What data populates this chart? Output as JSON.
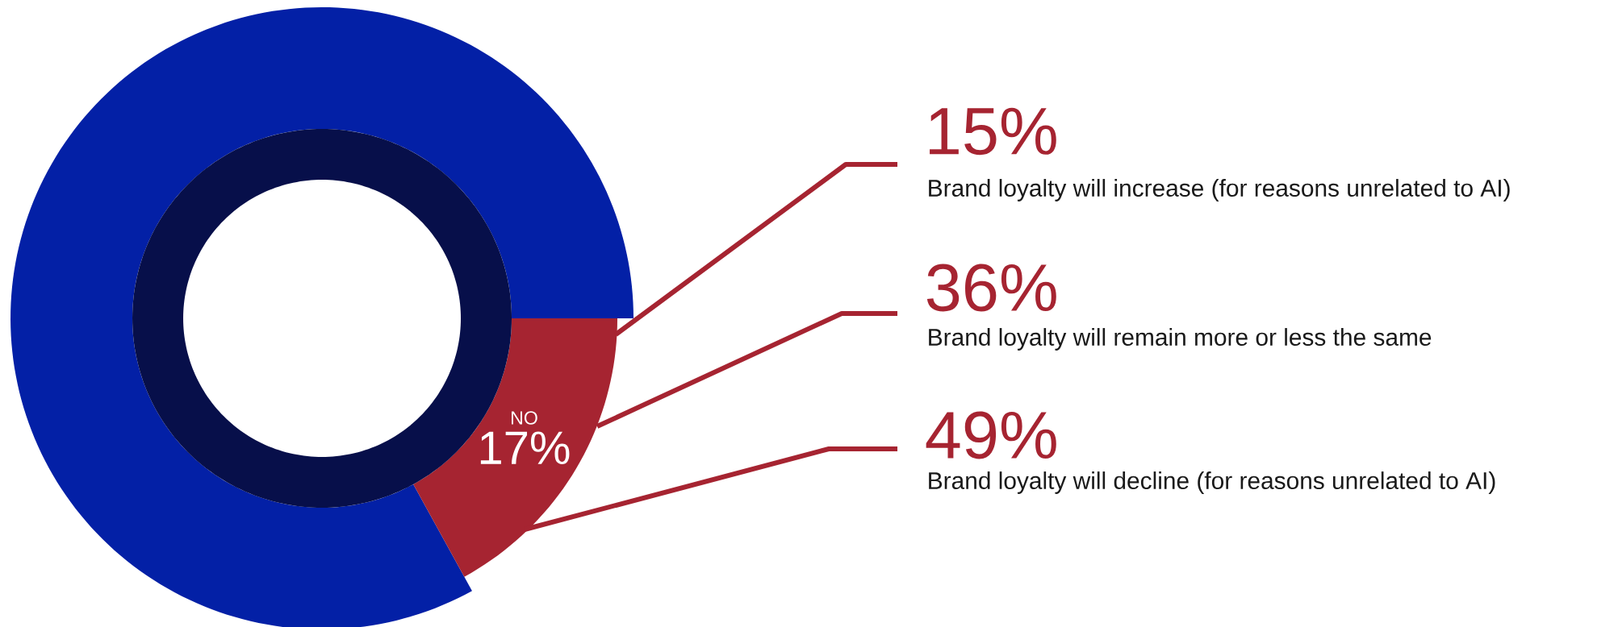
{
  "chart_data": [
    {
      "type": "donut",
      "categories": [
        null,
        "NO"
      ],
      "values": [
        83,
        17
      ],
      "colors": [
        "#0320a6",
        "#a62431"
      ],
      "value_labels": [
        null,
        "17%"
      ]
    },
    {
      "type": "other",
      "categories": [
        "Brand loyalty will increase (for reasons unrelated to AI)",
        "Brand loyalty will remain more or less the same",
        "Brand loyalty will decline (for reasons unrelated to AI)"
      ],
      "value_labels": [
        "15%",
        "36%",
        "49%"
      ],
      "color": "#a62431"
    }
  ]
}
